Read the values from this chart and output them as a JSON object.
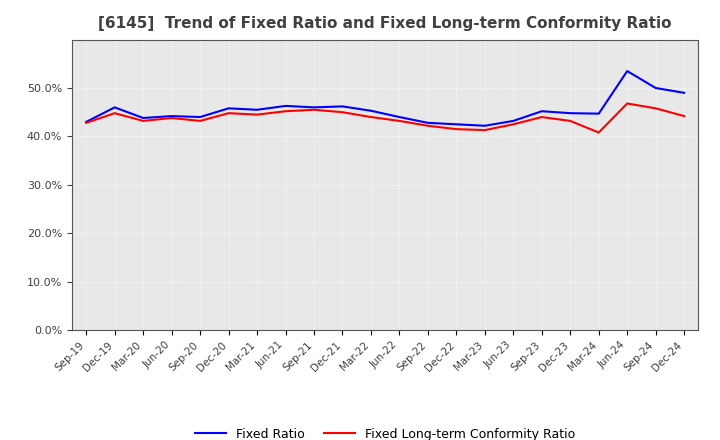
{
  "title": "[6145]  Trend of Fixed Ratio and Fixed Long-term Conformity Ratio",
  "x_labels": [
    "Sep-19",
    "Dec-19",
    "Mar-20",
    "Jun-20",
    "Sep-20",
    "Dec-20",
    "Mar-21",
    "Jun-21",
    "Sep-21",
    "Dec-21",
    "Mar-22",
    "Jun-22",
    "Sep-22",
    "Dec-22",
    "Mar-23",
    "Jun-23",
    "Sep-23",
    "Dec-23",
    "Mar-24",
    "Jun-24",
    "Sep-24",
    "Dec-24"
  ],
  "fixed_ratio": [
    0.43,
    0.46,
    0.438,
    0.442,
    0.44,
    0.458,
    0.455,
    0.463,
    0.46,
    0.462,
    0.453,
    0.44,
    0.428,
    0.425,
    0.422,
    0.432,
    0.452,
    0.448,
    0.447,
    0.535,
    0.5,
    0.49
  ],
  "fixed_lt_ratio": [
    0.428,
    0.448,
    0.432,
    0.438,
    0.432,
    0.448,
    0.445,
    0.452,
    0.455,
    0.45,
    0.44,
    0.432,
    0.422,
    0.415,
    0.413,
    0.425,
    0.44,
    0.432,
    0.408,
    0.468,
    0.458,
    0.442
  ],
  "fixed_ratio_color": "#0000ff",
  "fixed_lt_ratio_color": "#ff0000",
  "ylim": [
    0.0,
    0.6
  ],
  "yticks": [
    0.0,
    0.1,
    0.2,
    0.3,
    0.4,
    0.5
  ],
  "plot_bg_color": "#e8e8e8",
  "fig_bg_color": "#ffffff",
  "grid_color": "#ffffff",
  "title_color": "#404040",
  "tick_color": "#404040",
  "legend_fixed_ratio": "Fixed Ratio",
  "legend_fixed_lt_ratio": "Fixed Long-term Conformity Ratio"
}
